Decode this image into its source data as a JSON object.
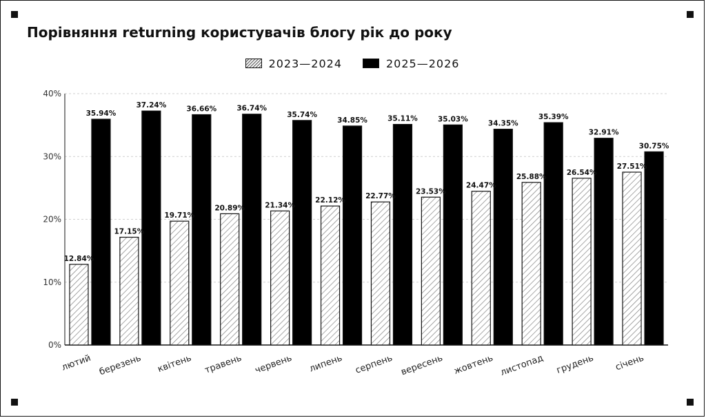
{
  "chart_data": {
    "type": "bar",
    "title": "Порівняння returning користувачів блогу рік до року",
    "categories": [
      "лютий",
      "березень",
      "квітень",
      "травень",
      "червень",
      "липень",
      "серпень",
      "вересень",
      "жовтень",
      "листопад",
      "грудень",
      "січень"
    ],
    "series": [
      {
        "name": "2023—2024",
        "style": "hatched",
        "values": [
          12.84,
          17.15,
          19.71,
          20.89,
          21.34,
          22.12,
          22.77,
          23.53,
          24.47,
          25.88,
          26.54,
          27.51
        ]
      },
      {
        "name": "2025—2026",
        "style": "solid",
        "color": "#000000",
        "values": [
          35.94,
          37.24,
          36.66,
          36.74,
          35.74,
          34.85,
          35.11,
          35.03,
          34.35,
          35.39,
          32.91,
          30.75
        ]
      }
    ],
    "ylim": [
      0,
      40
    ],
    "yticks": [
      "0%",
      "10%",
      "20%",
      "30%",
      "40%"
    ],
    "value_suffix": "%",
    "grid": "horizontal-dashed",
    "legend_position": "top-center"
  }
}
